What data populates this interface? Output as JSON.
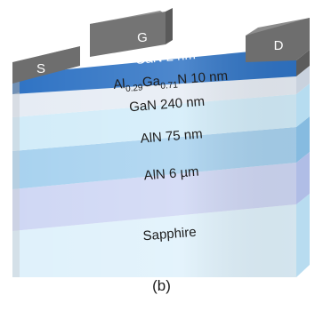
{
  "device": {
    "contacts": {
      "source": "S",
      "gate": "G",
      "drain": "D"
    },
    "layers": [
      {
        "id": "gan-cap",
        "label": "GaN 2 nm"
      },
      {
        "id": "algan-barrier",
        "label_parts": [
          {
            "t": "Al",
            "sub": false
          },
          {
            "t": "0.29",
            "sub": true
          },
          {
            "t": "Ga",
            "sub": false
          },
          {
            "t": "0.71",
            "sub": true
          },
          {
            "t": "N 10 nm",
            "sub": false
          }
        ]
      },
      {
        "id": "gan-channel",
        "label": "GaN 240 nm"
      },
      {
        "id": "aln-75",
        "label": "AlN 75 nm"
      },
      {
        "id": "aln-buffer",
        "label": "AlN 6 µm"
      },
      {
        "id": "sapphire",
        "label": "Sapphire"
      }
    ],
    "colors": {
      "contact_metal": "#7a7a7a",
      "gan_cap": "#2f73c4",
      "algan": "#e6ecf4",
      "gan": "#d2ecf9",
      "aln_75": "#a8d2ef",
      "aln_buffer": "#cfd7f4",
      "sapphire": "#dff1fb"
    }
  },
  "caption": "(b)"
}
